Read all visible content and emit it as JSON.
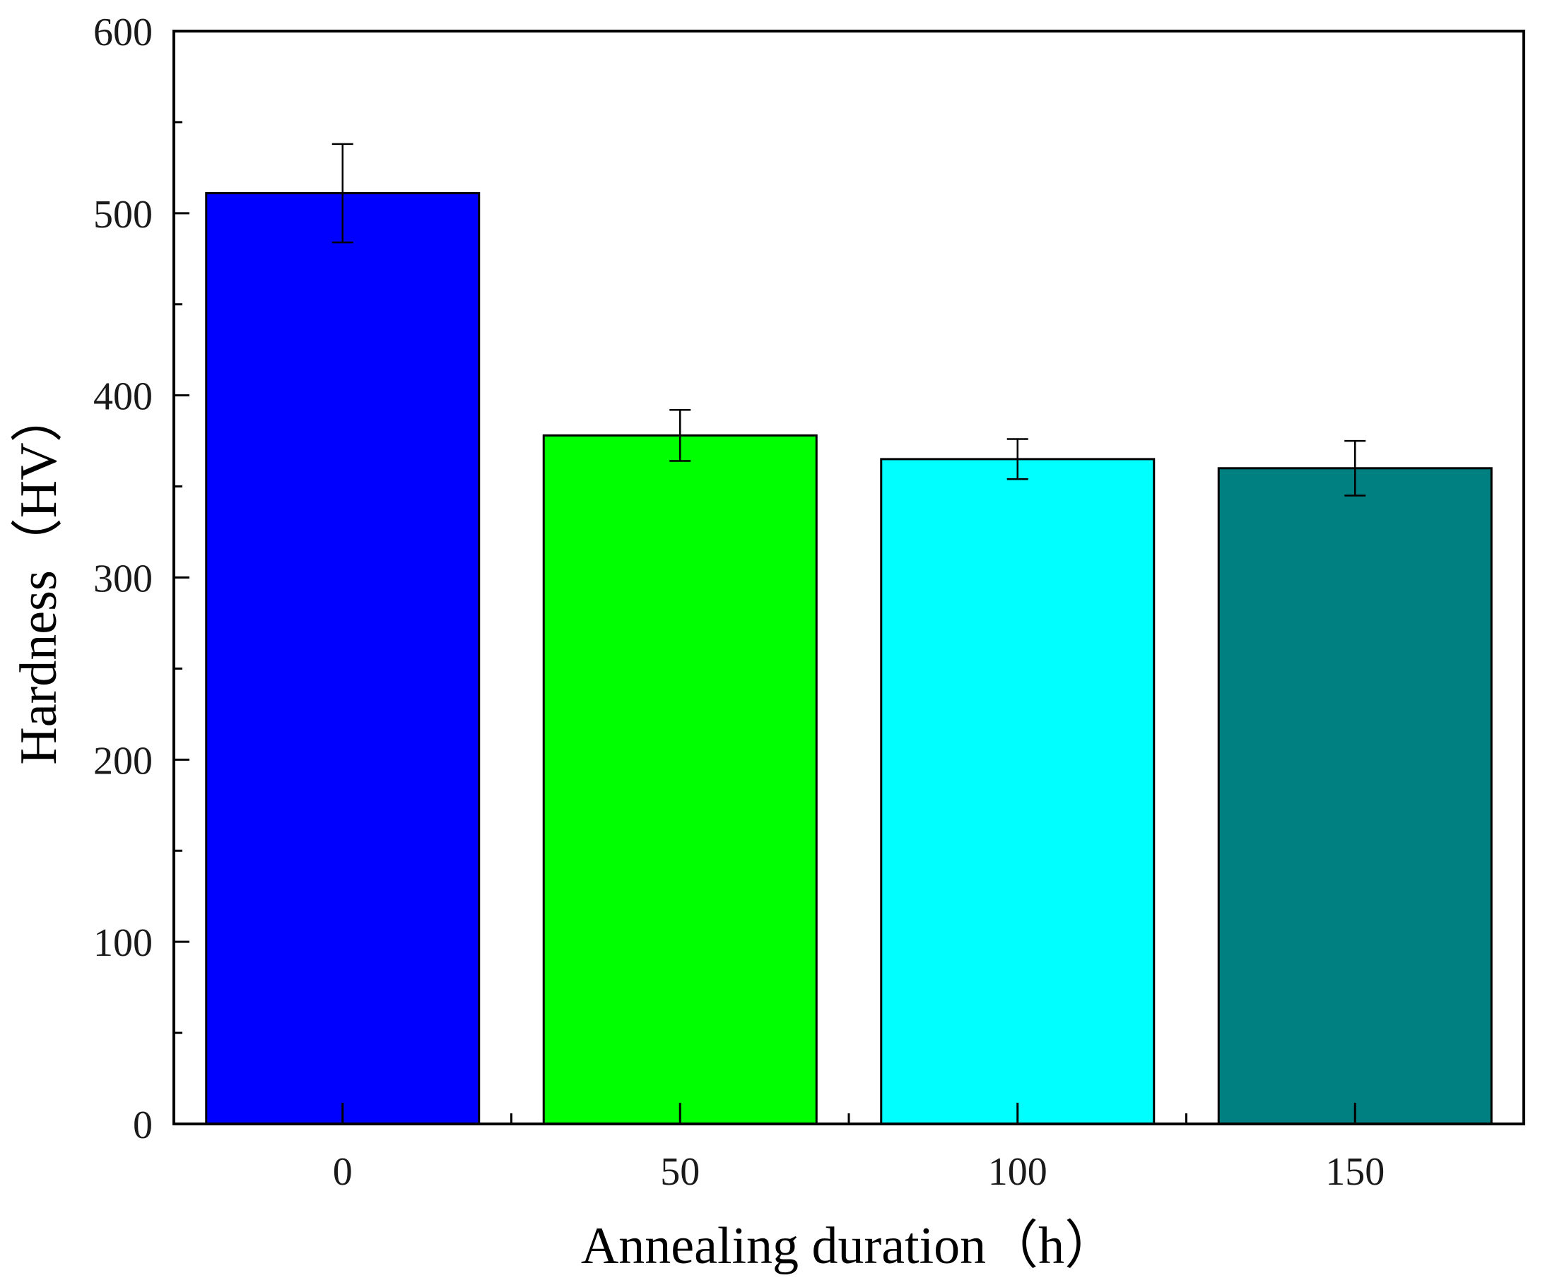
{
  "chart_data": {
    "type": "bar",
    "title": "",
    "xlabel": "Annealing duration（h）",
    "ylabel": "Hardness（HV）",
    "categories": [
      "0",
      "50",
      "100",
      "150"
    ],
    "values": [
      511,
      378,
      365,
      360
    ],
    "errors": [
      27,
      14,
      11,
      15
    ],
    "colors": [
      "#0000ff",
      "#00ff00",
      "#00ffff",
      "#008080"
    ],
    "ylim": [
      0,
      600
    ],
    "yticks": [
      0,
      100,
      200,
      300,
      400,
      500,
      600
    ],
    "ytick_labels": [
      "0",
      "100",
      "200",
      "300",
      "400",
      "500",
      "600"
    ],
    "grid": false,
    "legend": "none"
  }
}
